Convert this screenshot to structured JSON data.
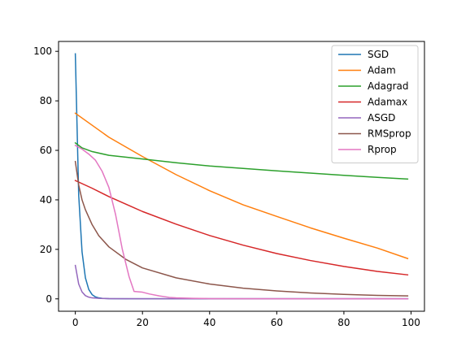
{
  "chart_data": {
    "type": "line",
    "title": "",
    "xlabel": "",
    "ylabel": "",
    "xlim": [
      -5,
      104
    ],
    "ylim": [
      -5,
      104
    ],
    "xticks": [
      0,
      20,
      40,
      60,
      80,
      100
    ],
    "yticks": [
      0,
      20,
      40,
      60,
      80,
      100
    ],
    "grid": false,
    "legend_position": "top-right",
    "series": [
      {
        "name": "SGD",
        "color": "#1f77b4",
        "points": [
          [
            0,
            99
          ],
          [
            1,
            42
          ],
          [
            2,
            19
          ],
          [
            3,
            8.5
          ],
          [
            4,
            3.8
          ],
          [
            5,
            1.7
          ],
          [
            6,
            0.8
          ],
          [
            7,
            0.4
          ],
          [
            8,
            0.2
          ],
          [
            10,
            0.1
          ],
          [
            15,
            0.05
          ],
          [
            20,
            0.05
          ],
          [
            40,
            0.05
          ],
          [
            60,
            0.05
          ],
          [
            80,
            0.05
          ],
          [
            99,
            0.05
          ]
        ]
      },
      {
        "name": "Adam",
        "color": "#ff7f0e",
        "points": [
          [
            0,
            75
          ],
          [
            10,
            65.3
          ],
          [
            20,
            57.5
          ],
          [
            30,
            50.2
          ],
          [
            40,
            43.7
          ],
          [
            50,
            38
          ],
          [
            60,
            33.3
          ],
          [
            70,
            28.7
          ],
          [
            80,
            24.5
          ],
          [
            90,
            20.5
          ],
          [
            99,
            16.3
          ]
        ]
      },
      {
        "name": "Adagrad",
        "color": "#2ca02c",
        "points": [
          [
            0,
            63
          ],
          [
            2,
            61
          ],
          [
            5,
            59.5
          ],
          [
            10,
            58
          ],
          [
            20,
            56.5
          ],
          [
            30,
            55
          ],
          [
            40,
            53.7
          ],
          [
            50,
            52.7
          ],
          [
            60,
            51.7
          ],
          [
            70,
            50.8
          ],
          [
            80,
            49.9
          ],
          [
            90,
            49.1
          ],
          [
            99,
            48.4
          ]
        ]
      },
      {
        "name": "Adamax",
        "color": "#d62728",
        "points": [
          [
            0,
            47.8
          ],
          [
            5,
            44.7
          ],
          [
            10,
            41.3
          ],
          [
            20,
            35.3
          ],
          [
            30,
            30.2
          ],
          [
            40,
            25.6
          ],
          [
            50,
            21.7
          ],
          [
            60,
            18.3
          ],
          [
            70,
            15.5
          ],
          [
            80,
            13.1
          ],
          [
            90,
            11.1
          ],
          [
            99,
            9.7
          ]
        ]
      },
      {
        "name": "ASGD",
        "color": "#9467bd",
        "points": [
          [
            0,
            13.5
          ],
          [
            1,
            6
          ],
          [
            2,
            2.8
          ],
          [
            3,
            1.3
          ],
          [
            4,
            0.7
          ],
          [
            5,
            0.4
          ],
          [
            7,
            0.2
          ],
          [
            10,
            0.1
          ],
          [
            20,
            0.05
          ],
          [
            40,
            0.05
          ],
          [
            60,
            0.05
          ],
          [
            80,
            0.05
          ],
          [
            99,
            0.05
          ]
        ]
      },
      {
        "name": "RMSprop",
        "color": "#8c564b",
        "points": [
          [
            0,
            55.5
          ],
          [
            1,
            46
          ],
          [
            2,
            40
          ],
          [
            3,
            36
          ],
          [
            5,
            30
          ],
          [
            7,
            25.5
          ],
          [
            10,
            21
          ],
          [
            15,
            16
          ],
          [
            20,
            12.5
          ],
          [
            30,
            8.5
          ],
          [
            40,
            6
          ],
          [
            50,
            4.3
          ],
          [
            60,
            3.2
          ],
          [
            70,
            2.4
          ],
          [
            80,
            1.8
          ],
          [
            90,
            1.4
          ],
          [
            99,
            1.2
          ]
        ]
      },
      {
        "name": "Rprop",
        "color": "#e377c2",
        "points": [
          [
            0,
            62
          ],
          [
            2,
            60.5
          ],
          [
            4,
            58.5
          ],
          [
            6,
            56
          ],
          [
            8,
            51.5
          ],
          [
            10,
            45
          ],
          [
            12,
            34
          ],
          [
            14,
            20
          ],
          [
            16,
            9
          ],
          [
            17.5,
            3
          ],
          [
            20,
            2.7
          ],
          [
            22,
            2
          ],
          [
            25,
            1.2
          ],
          [
            28,
            0.6
          ],
          [
            30,
            0.4
          ],
          [
            35,
            0.2
          ],
          [
            40,
            0.1
          ],
          [
            60,
            0.05
          ],
          [
            80,
            0.05
          ],
          [
            99,
            0.05
          ]
        ]
      }
    ]
  }
}
